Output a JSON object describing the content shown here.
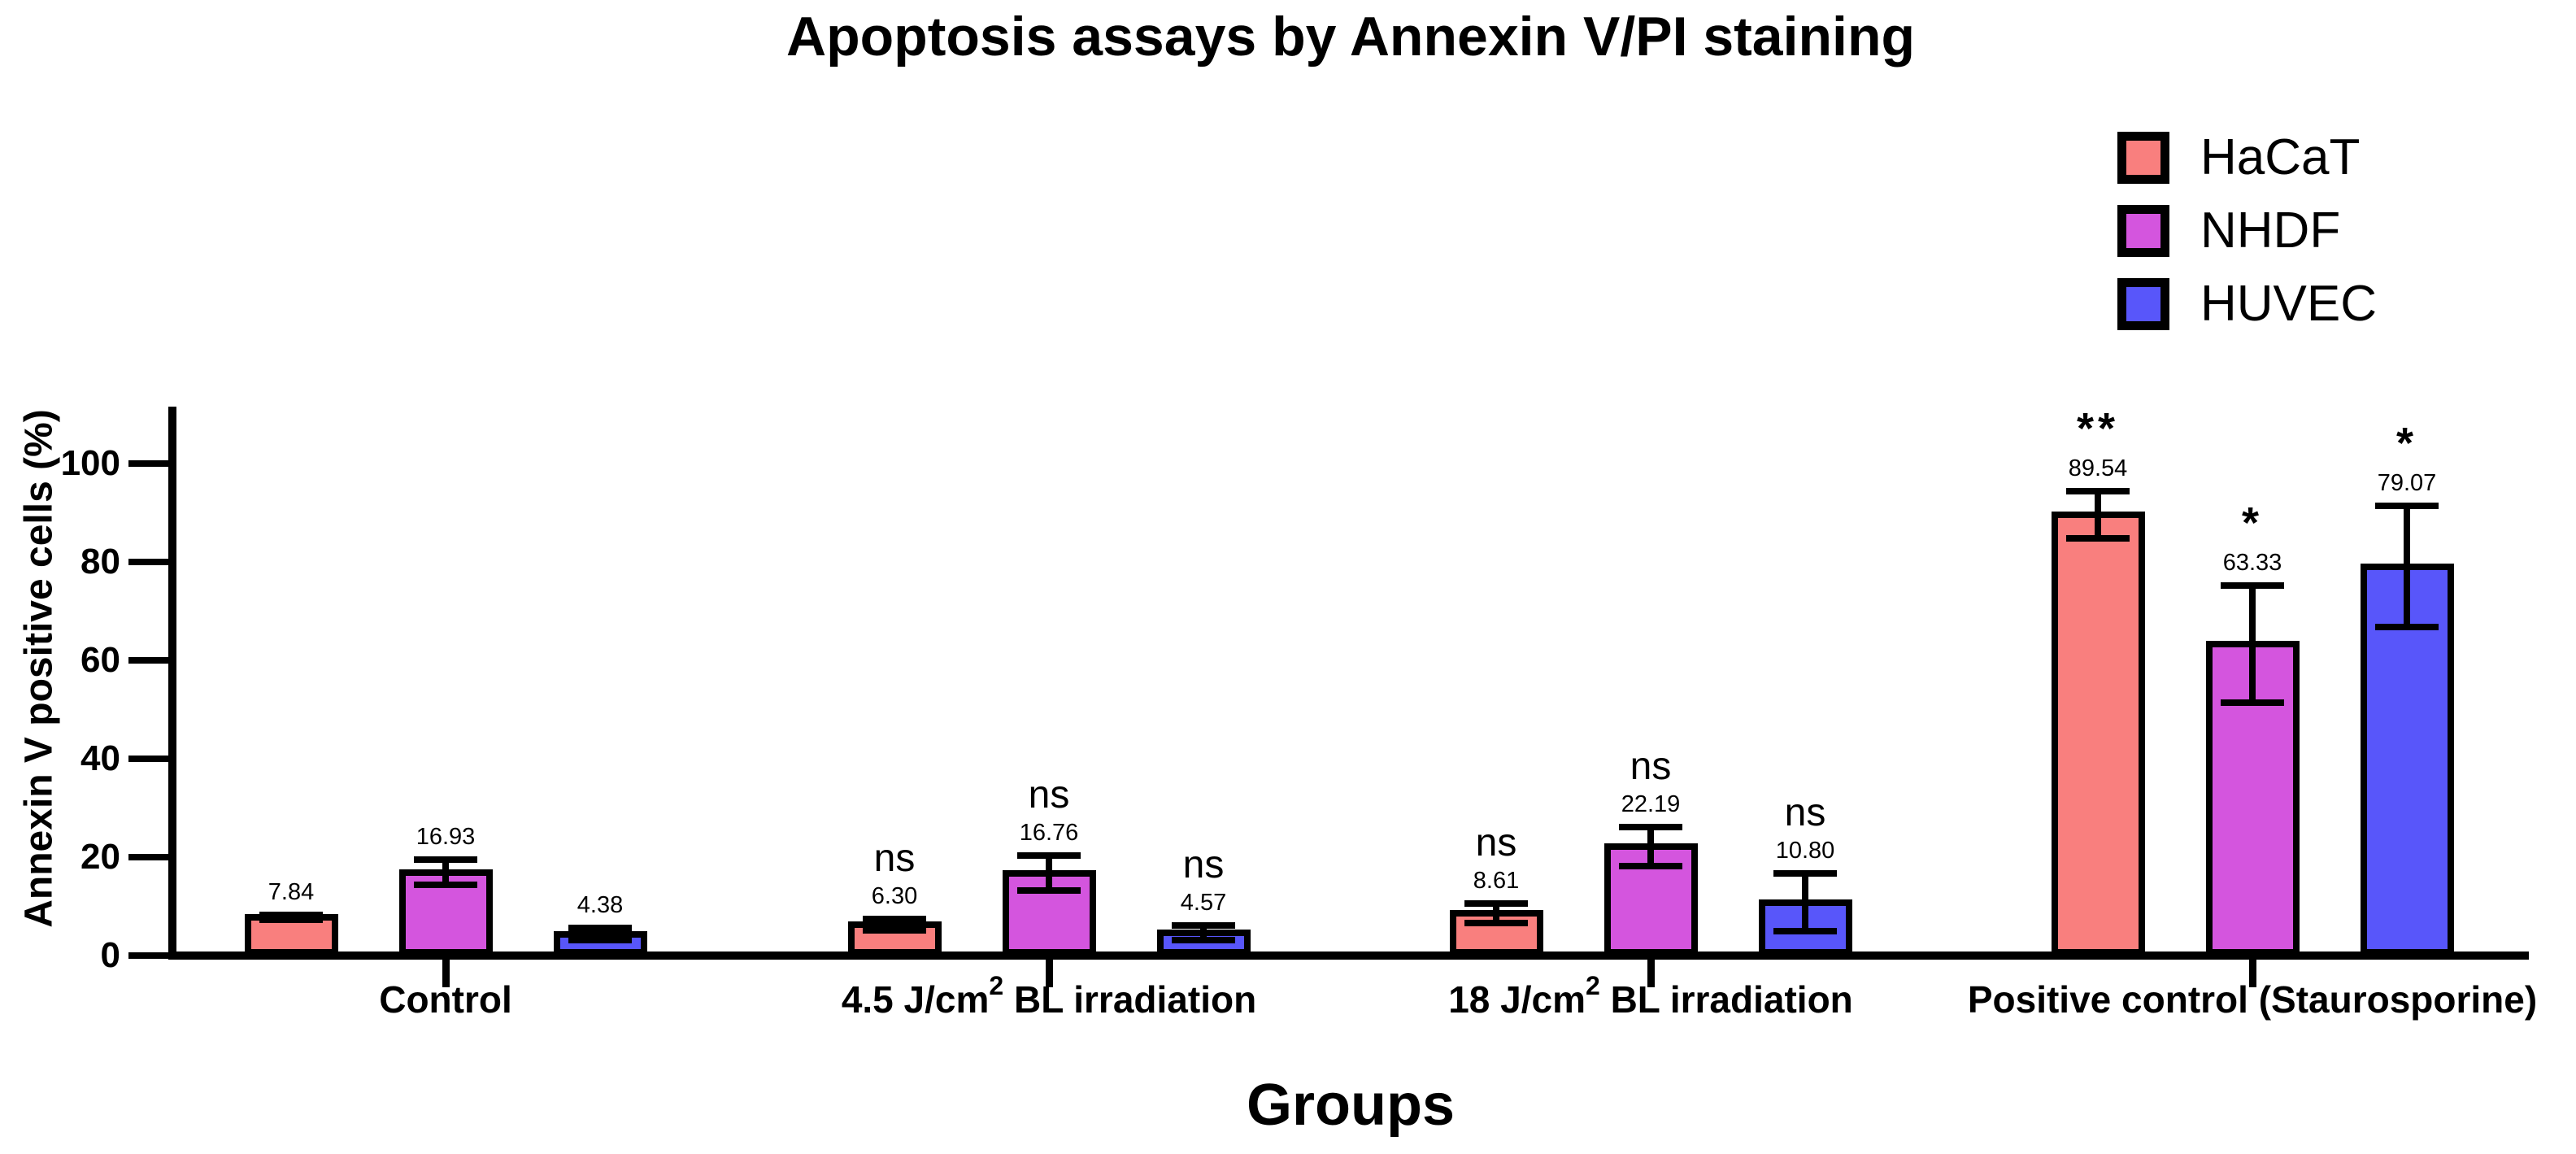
{
  "title": "Apoptosis assays by Annexin V/PI staining",
  "y_axis": {
    "label": "Annexin V positive cells (%)",
    "ticks": [
      0,
      20,
      40,
      60,
      80,
      100
    ]
  },
  "x_axis": {
    "label": "Groups"
  },
  "legend": [
    {
      "name": "HaCaT",
      "color": "#F97F7E"
    },
    {
      "name": "NHDF",
      "color": "#D455DE"
    },
    {
      "name": "HUVEC",
      "color": "#5856FA"
    }
  ],
  "chart_data": {
    "type": "bar",
    "title": "Apoptosis assays by Annexin V/PI staining",
    "xlabel": "Groups",
    "ylabel": "Annexin V positive cells (%)",
    "ylim": [
      0,
      100
    ],
    "grid": false,
    "legend_position": "top-right",
    "categories": [
      {
        "pre": "Control",
        "sup": "",
        "post": ""
      },
      {
        "pre": "4.5 J/cm",
        "sup": "2",
        "post": " BL irradiation"
      },
      {
        "pre": "18 J/cm",
        "sup": "2",
        "post": " BL irradiation"
      },
      {
        "pre": "Positive control (Staurosporine)",
        "sup": "",
        "post": ""
      }
    ],
    "series": [
      {
        "name": "HaCaT",
        "color": "#F97F7E",
        "values": [
          7.84,
          6.3,
          8.61,
          89.54
        ],
        "errors": [
          0.5,
          1.2,
          2.0,
          4.8
        ],
        "significance": [
          "",
          "ns",
          "ns",
          "**"
        ]
      },
      {
        "name": "NHDF",
        "color": "#D455DE",
        "values": [
          16.93,
          16.76,
          22.19,
          63.33
        ],
        "errors": [
          2.6,
          3.6,
          4.0,
          11.9
        ],
        "significance": [
          "",
          "ns",
          "ns",
          "*"
        ]
      },
      {
        "name": "HUVEC",
        "color": "#5856FA",
        "values": [
          4.38,
          4.57,
          10.8,
          79.07
        ],
        "errors": [
          1.3,
          1.5,
          5.9,
          12.3
        ],
        "significance": [
          "",
          "ns",
          "ns",
          "*"
        ]
      }
    ]
  }
}
